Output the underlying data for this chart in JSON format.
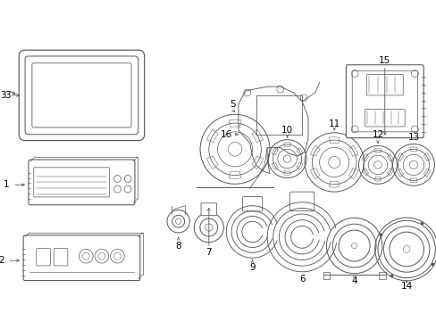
{
  "background_color": "#ffffff",
  "line_color": "#555555",
  "label_color": "#000000",
  "fig_width": 4.89,
  "fig_height": 3.6,
  "dpi": 100,
  "lw": 0.7
}
